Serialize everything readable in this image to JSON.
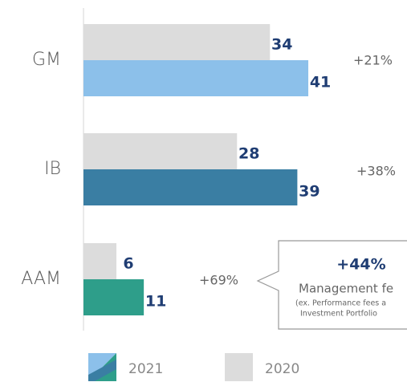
{
  "chart_data": {
    "type": "bar",
    "orientation": "horizontal",
    "categories": [
      "GM",
      "IB",
      "AAM"
    ],
    "xlim": [
      0,
      59
    ],
    "series": [
      {
        "name": "2020",
        "color": "#dcdcdc",
        "values": [
          34,
          28,
          6
        ]
      },
      {
        "name": "2021",
        "colors": [
          "#8cc0ea",
          "#3a7ea3",
          "#2e9e8a"
        ],
        "values": [
          41,
          39,
          11
        ]
      }
    ],
    "growth_labels": [
      "+21%",
      "+38%",
      "+69%"
    ],
    "callout": {
      "headline": "+44%",
      "text": "Management fe",
      "note_lines": [
        "(ex. Performance fees a",
        "Investment Portfolio"
      ]
    }
  }
}
